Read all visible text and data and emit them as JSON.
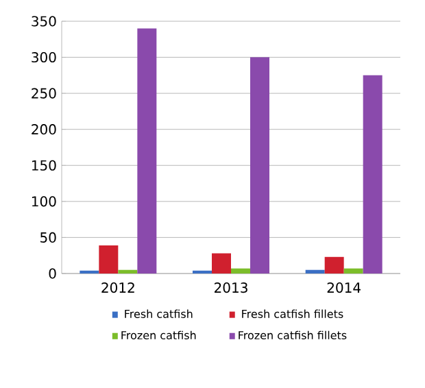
{
  "chart_data": {
    "type": "bar",
    "categories": [
      "2012",
      "2013",
      "2014"
    ],
    "series": [
      {
        "name": "Fresh catfish",
        "color": "#3a6fc4",
        "values": [
          4,
          4,
          5
        ]
      },
      {
        "name": "Fresh catfish fillets",
        "color": "#d0202e",
        "values": [
          39,
          28,
          23
        ]
      },
      {
        "name": "Frozen catfish",
        "color": "#7cbd2a",
        "values": [
          5,
          7,
          7
        ]
      },
      {
        "name": "Frozen catfish fillets",
        "color": "#8a4aac",
        "values": [
          340,
          300,
          275
        ]
      }
    ],
    "ylim": [
      0,
      350
    ],
    "yticks": [
      0,
      50,
      100,
      150,
      200,
      250,
      300,
      350
    ],
    "grid": "y",
    "legend": "bottom"
  }
}
